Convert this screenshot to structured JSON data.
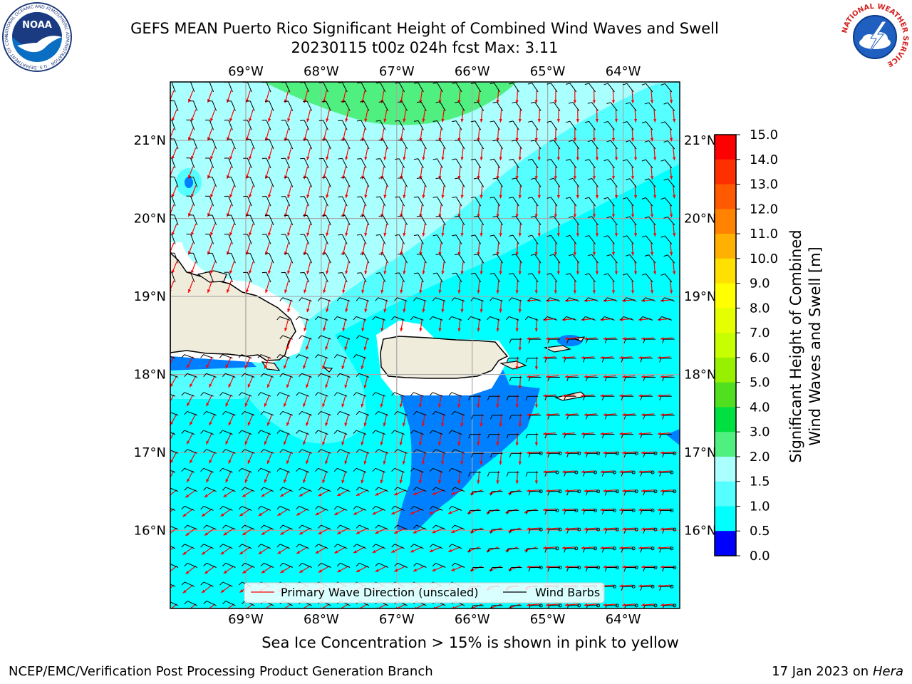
{
  "header": {
    "title_line1": "GEFS MEAN Puerto Rico Significant Height of Combined Wind Waves and Swell",
    "title_line2": "20230115 t00z 024h fcst   Max: 3.11"
  },
  "logos": {
    "noaa": {
      "text": "NOAA",
      "ring_text": "NATIONAL OCEANIC AND ATMOSPHERIC ADMINISTRATION · U.S. DEPARTMENT OF COMMERCE"
    },
    "nws": {
      "ring_text": "NATIONAL WEATHER SERVICE"
    }
  },
  "map": {
    "lon_labels": [
      "69°W",
      "68°W",
      "67°W",
      "66°W",
      "65°W",
      "64°W"
    ],
    "lat_labels_left": [
      "21°N",
      "20°N",
      "19°N",
      "18°N",
      "17°N",
      "16°N"
    ],
    "lat_labels_right": [
      "21°N",
      "20°N",
      "19°N",
      "18°N",
      "17°N",
      "16°N"
    ],
    "lon_range": [
      -70.0,
      -63.25
    ],
    "lat_range": [
      15.0,
      21.75
    ],
    "lon_ticks": [
      -69,
      -68,
      -67,
      -66,
      -65,
      -64
    ],
    "lat_ticks": [
      21,
      20,
      19,
      18,
      17,
      16
    ],
    "land_color": "#efecdc",
    "legend": {
      "wave_label": "Primary Wave Direction (unscaled)",
      "wave_color": "#ff0000",
      "barb_label": "Wind Barbs",
      "barb_color": "#000000"
    }
  },
  "colorbar": {
    "label_line1": "Significant Height of Combined",
    "label_line2": "Wind Waves and Swell [m]",
    "ticks": [
      "15.0",
      "14.0",
      "13.0",
      "12.0",
      "11.0",
      "10.0",
      "9.0",
      "8.0",
      "7.0",
      "6.0",
      "5.0",
      "4.0",
      "3.0",
      "2.0",
      "1.5",
      "1.0",
      "0.5",
      "0.0"
    ],
    "colors": [
      "#ff0000",
      "#ff3000",
      "#ff5a00",
      "#ff8200",
      "#ffb000",
      "#ffe000",
      "#ffff00",
      "#e6ff00",
      "#c8ff00",
      "#96f000",
      "#50e020",
      "#00e040",
      "#50f080",
      "#aaffff",
      "#55ffff",
      "#00ffff",
      "#0080ff",
      "#0000ff"
    ]
  },
  "footer": {
    "note": "Sea Ice Concentration > 15% is shown in pink to yellow",
    "left": "NCEP/EMC/Verification Post Processing Product Generation Branch",
    "right_date": "17 Jan 2023 on",
    "right_host": "Hera"
  }
}
